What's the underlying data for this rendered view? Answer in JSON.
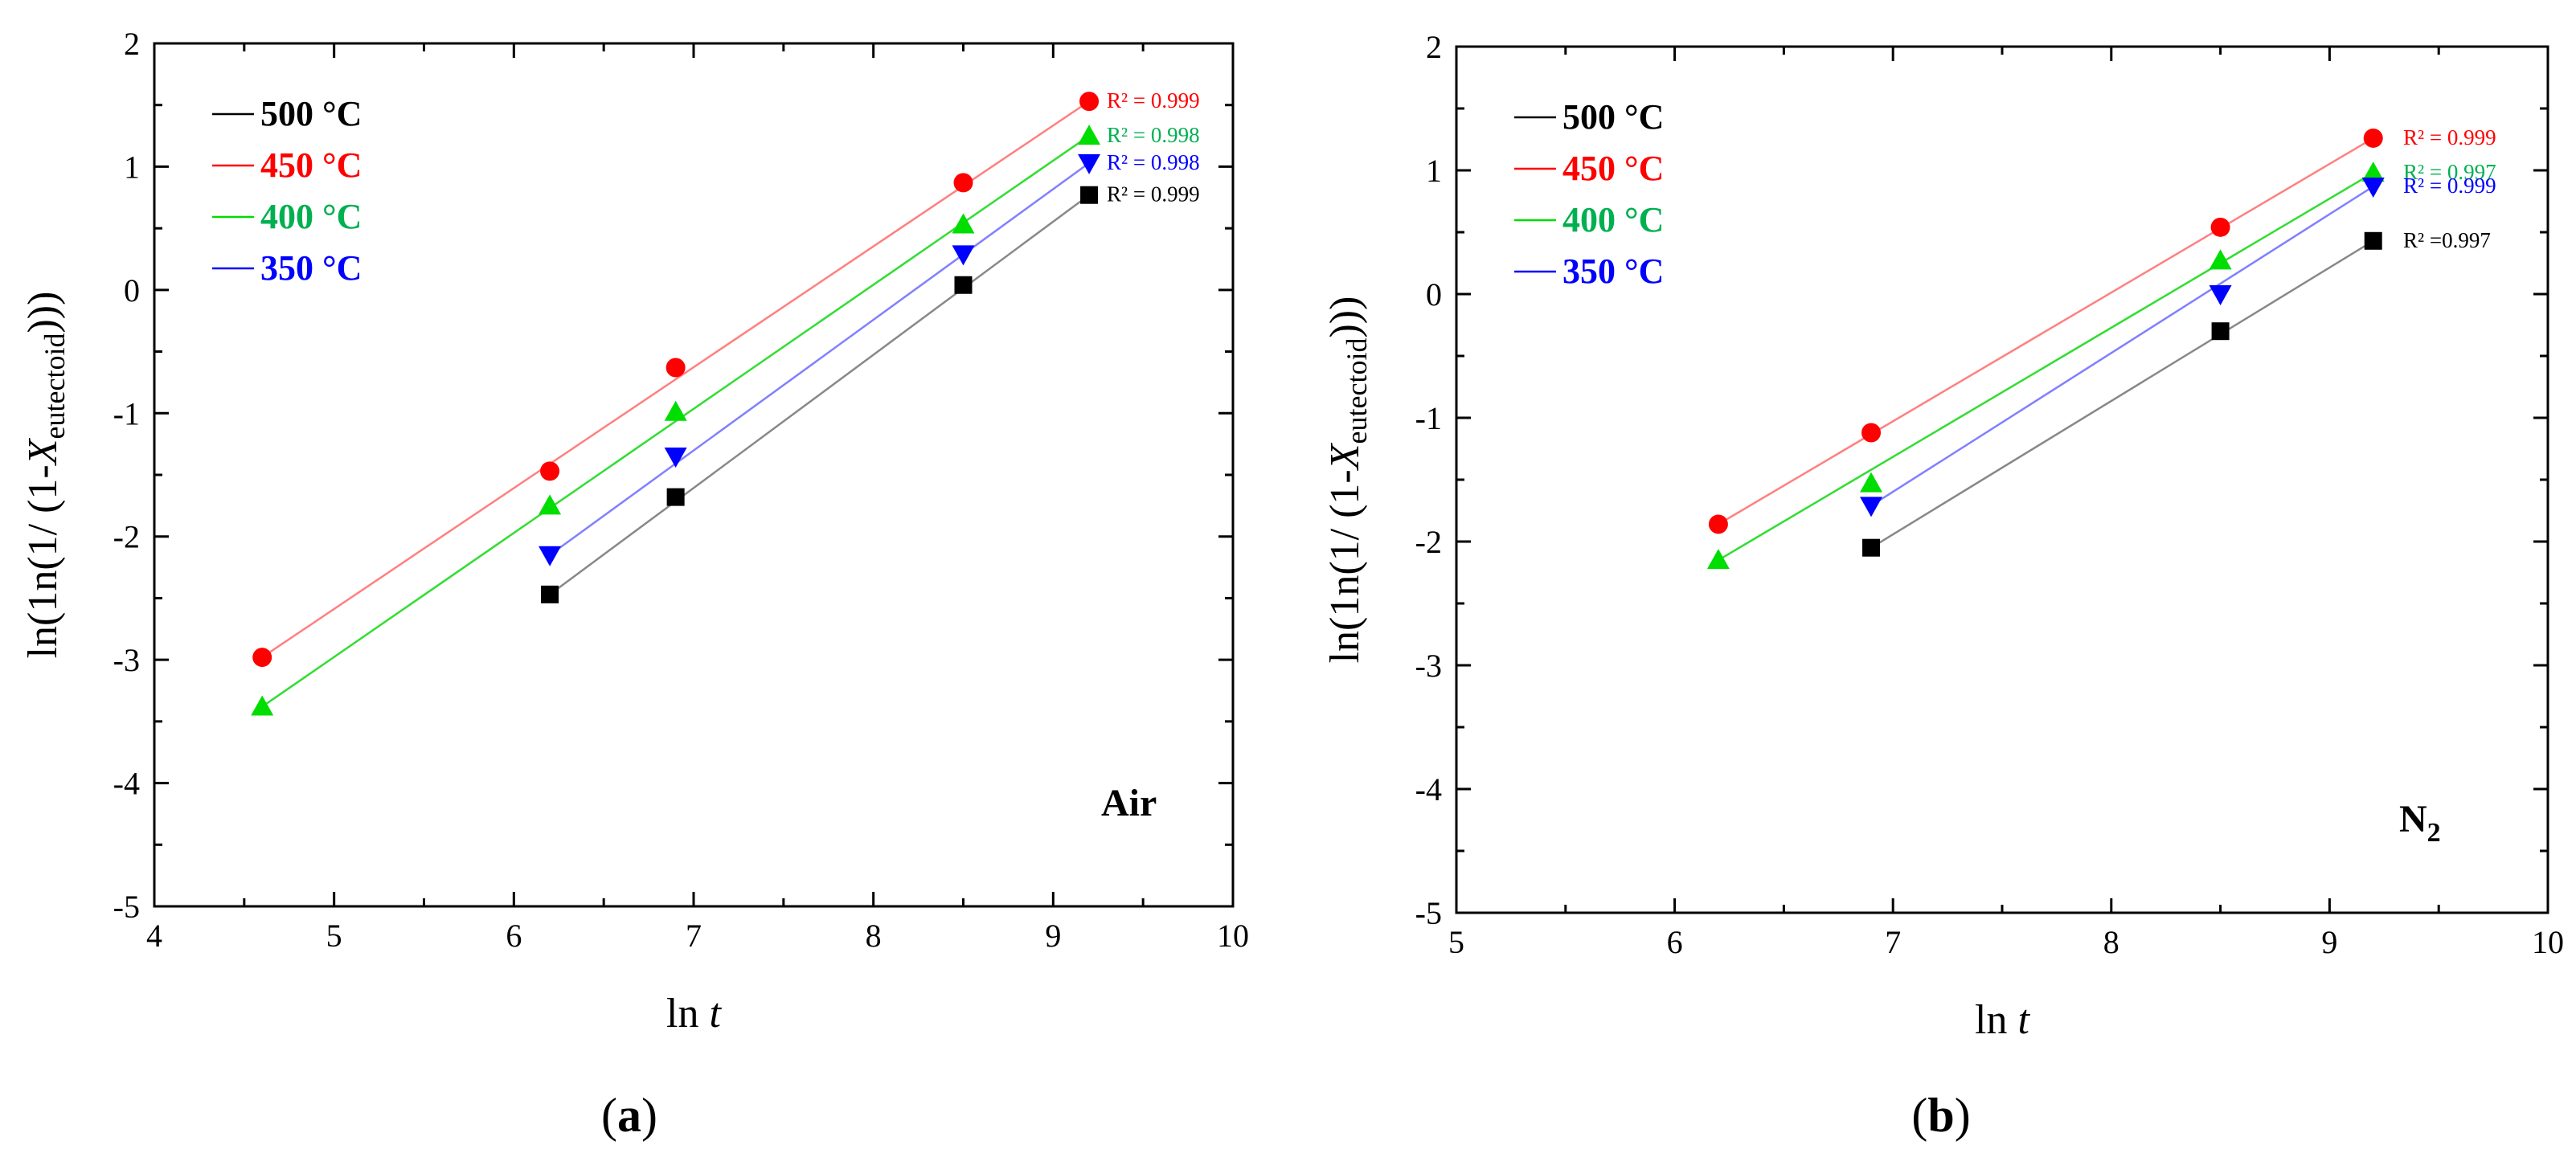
{
  "colors": {
    "s500": "#000000",
    "s450": "#ff0000",
    "s400": "#00dd00",
    "s350": "#0000ff",
    "line500": "#888888",
    "line450": "#ff8080",
    "line400": "#33dd33",
    "line350": "#8080ff",
    "label400": "#00b050"
  },
  "chart_data": [
    {
      "type": "scatter",
      "panel": "a",
      "caption_prefix": "(",
      "caption_letter": "a",
      "caption_suffix": ")",
      "condition": "Air",
      "xlabel": "ln ",
      "xlabel_italic": "t",
      "ylabel_prefix": "ln(1n(1/ (1-",
      "ylabel_X": "X",
      "ylabel_sub": "eutectoid",
      "ylabel_suffix": ")))",
      "xlim": [
        4,
        10
      ],
      "ylim": [
        -5,
        2
      ],
      "xticks": [
        "4",
        "5",
        "6",
        "7",
        "8",
        "9",
        "10"
      ],
      "yticks": [
        "-5",
        "-4",
        "-3",
        "-2",
        "-1",
        "0",
        "1",
        "2"
      ],
      "legend": [
        "500 °C",
        "450 °C",
        "400 °C",
        "350 °C"
      ],
      "series": [
        {
          "name": "500 °C",
          "marker": "square",
          "x": [
            6.2,
            6.9,
            8.5,
            9.2
          ],
          "y": [
            -2.47,
            -1.68,
            0.04,
            0.77
          ],
          "r2": "R² = 0.999"
        },
        {
          "name": "450 °C",
          "marker": "circle",
          "x": [
            4.6,
            6.2,
            6.9,
            8.5,
            9.2
          ],
          "y": [
            -2.98,
            -1.47,
            -0.63,
            0.87,
            1.53
          ],
          "r2": "R² = 0.999"
        },
        {
          "name": "400 °C",
          "marker": "triangle-up",
          "x": [
            4.6,
            6.2,
            6.9,
            8.5,
            9.2
          ],
          "y": [
            -3.38,
            -1.75,
            -0.99,
            0.53,
            1.25
          ],
          "r2": "R² = 0.998"
        },
        {
          "name": "350 °C",
          "marker": "triangle-down",
          "x": [
            6.2,
            6.9,
            8.5,
            9.2
          ],
          "y": [
            -2.15,
            -1.35,
            0.29,
            1.03
          ],
          "r2": "R² = 0.998"
        }
      ]
    },
    {
      "type": "scatter",
      "panel": "b",
      "caption_prefix": "(",
      "caption_letter": "b",
      "caption_suffix": ")",
      "condition": "N",
      "condition_sub": "2",
      "xlabel": "ln ",
      "xlabel_italic": "t",
      "ylabel_prefix": "ln(1n(1/ (1-",
      "ylabel_X": "X",
      "ylabel_sub": "eutectoid",
      "ylabel_suffix": ")))",
      "xlim": [
        5,
        10
      ],
      "ylim": [
        -5,
        2
      ],
      "xticks": [
        "5",
        "6",
        "7",
        "8",
        "9",
        "10"
      ],
      "yticks": [
        "-5",
        "-4",
        "-3",
        "-2",
        "-1",
        "0",
        "1",
        "2"
      ],
      "legend": [
        "500 °C",
        "450 °C",
        "400 °C",
        "350 °C"
      ],
      "series": [
        {
          "name": "500 °C",
          "marker": "square",
          "x": [
            6.9,
            8.5,
            9.2
          ],
          "y": [
            -2.05,
            -0.3,
            0.43
          ],
          "r2": "R² =0.997"
        },
        {
          "name": "450 °C",
          "marker": "circle",
          "x": [
            6.2,
            6.9,
            8.5,
            9.2
          ],
          "y": [
            -1.86,
            -1.12,
            0.54,
            1.26
          ],
          "r2": "R² = 0.999"
        },
        {
          "name": "400 °C",
          "marker": "triangle-up",
          "x": [
            6.2,
            6.9,
            8.5,
            9.2
          ],
          "y": [
            -2.15,
            -1.53,
            0.27,
            0.98
          ],
          "r2": "R² = 0.997"
        },
        {
          "name": "350 °C",
          "marker": "triangle-down",
          "x": [
            6.9,
            8.5,
            9.2
          ],
          "y": [
            -1.71,
            0.0,
            0.87
          ],
          "r2": "R² = 0.999"
        }
      ]
    }
  ]
}
